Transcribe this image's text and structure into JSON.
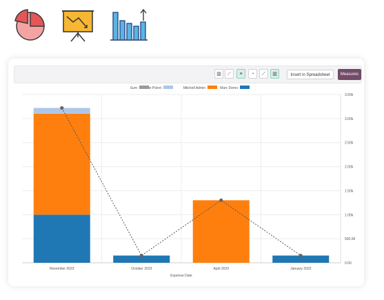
{
  "icons": [
    {
      "name": "pie-chart-icon"
    },
    {
      "name": "presentation-line-icon"
    },
    {
      "name": "bar-chart-icon"
    }
  ],
  "toolbar": {
    "measures_label": "Measures",
    "insert_label": "Insert in Spreadsheet",
    "buttons": [
      "bar-chart",
      "line-chart",
      "pie-chart",
      "stacked",
      "descending",
      "ascending"
    ]
  },
  "colors": {
    "blue": "#1f77b4",
    "orange": "#ff7f0e",
    "lightblue": "#aec7e8",
    "gray": "#9a9a9a",
    "brand": "#714b67"
  },
  "chart_data": {
    "type": "bar",
    "stacked": true,
    "categories": [
      "November 2023",
      "October 2023",
      "April 2023",
      "January 2023"
    ],
    "series": [
      {
        "name": "Marc Demo",
        "values": [
          1000,
          150,
          0,
          150
        ]
      },
      {
        "name": "Mitchell Admin",
        "values": [
          2100,
          0,
          1300,
          0
        ]
      },
      {
        "name": "Laurie Poiret",
        "values": [
          120,
          0,
          0,
          0
        ]
      },
      {
        "name": "Sum",
        "values": [
          3220,
          150,
          1300,
          150
        ]
      }
    ],
    "legend": [
      "Marc Demo",
      "Mitchell Admin",
      "Laurie Poiret",
      "Sum"
    ],
    "xlabel": "Expense Date",
    "ylim": [
      0,
      3500
    ],
    "yticks": [
      "0.00",
      "500.00",
      "1.00k",
      "1.50k",
      "2.00k",
      "2.50k",
      "3.00k",
      "3.50k"
    ],
    "legend_position": "top-right",
    "y_axis_side": "right",
    "grid": true
  }
}
